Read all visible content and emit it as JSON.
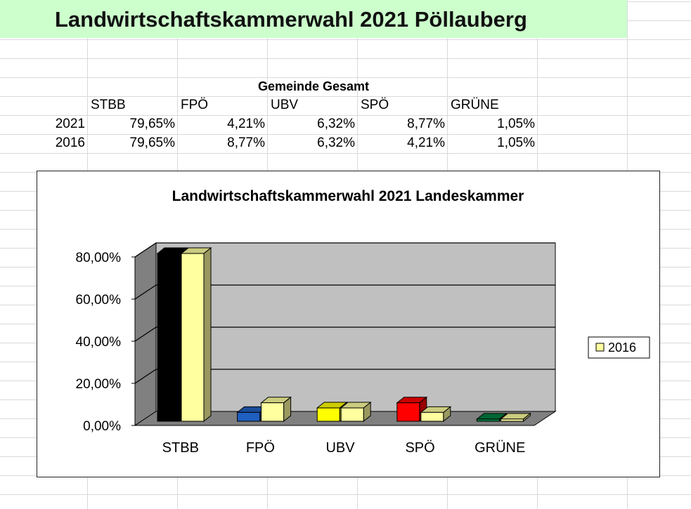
{
  "page": {
    "title": "Landwirtschaftskammerwahl 2021 Pöllauberg"
  },
  "table": {
    "heading": "Gemeinde Gesamt",
    "columns": [
      "STBB",
      "FPÖ",
      "UBV",
      "SPÖ",
      "GRÜNE"
    ],
    "rows": [
      {
        "year": "2021",
        "values": [
          "79,65%",
          "4,21%",
          "6,32%",
          "8,77%",
          "1,05%"
        ]
      },
      {
        "year": "2016",
        "values": [
          "79,65%",
          "8,77%",
          "6,32%",
          "4,21%",
          "1,05%"
        ]
      }
    ]
  },
  "chart_data": {
    "type": "bar",
    "title": "Landwirtschaftskammerwahl 2021 Landeskammer",
    "xlabel": "",
    "ylabel": "",
    "categories": [
      "STBB",
      "FPÖ",
      "UBV",
      "SPÖ",
      "GRÜNE"
    ],
    "series": [
      {
        "values": [
          79.65,
          4.21,
          6.32,
          8.77,
          1.05
        ],
        "colors": [
          "#000000",
          "#1f5fbf",
          "#ffff00",
          "#ff0000",
          "#008040"
        ]
      },
      {
        "name": "2016",
        "values": [
          79.65,
          8.77,
          6.32,
          4.21,
          1.05
        ],
        "color": "#ffffa0"
      }
    ],
    "ylim": [
      0,
      80
    ],
    "yticks": [
      "0,00%",
      "20,00%",
      "40,00%",
      "60,00%",
      "80,00%"
    ],
    "legend_position": "right",
    "grid": true,
    "style": "3d-column",
    "wall_color": "#c0c0c0"
  }
}
